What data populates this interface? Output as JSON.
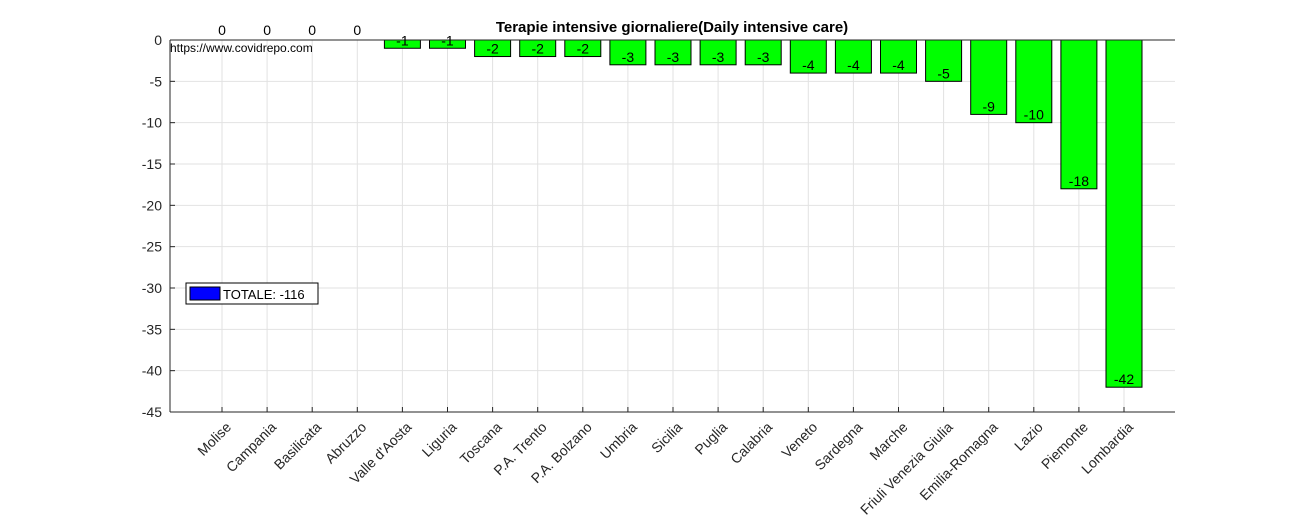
{
  "chart_data": {
    "type": "bar",
    "title": "Terapie intensive giornaliere(Daily intensive care)",
    "source": "https://www.covidrepo.com",
    "categories": [
      "Molise",
      "Campania",
      "Basilicata",
      "Abruzzo",
      "Valle d'Aosta",
      "Liguria",
      "Toscana",
      "P.A. Trento",
      "P.A. Bolzano",
      "Umbria",
      "Sicilia",
      "Puglia",
      "Calabria",
      "Veneto",
      "Sardegna",
      "Marche",
      "Friuli Venezia Giulia",
      "Emilia-Romagna",
      "Lazio",
      "Piemonte",
      "Lombardia"
    ],
    "values": [
      0,
      0,
      0,
      0,
      -1,
      -1,
      -2,
      -2,
      -2,
      -3,
      -3,
      -3,
      -3,
      -4,
      -4,
      -4,
      -5,
      -9,
      -10,
      -18,
      -42
    ],
    "ylim": [
      -45,
      0
    ],
    "yticks": [
      0,
      -5,
      -10,
      -15,
      -20,
      -25,
      -30,
      -35,
      -40,
      -45
    ],
    "xlabel": "",
    "ylabel": "",
    "grid": true,
    "bar_color": "#00ff00",
    "legend": {
      "label": "TOTALE: -116",
      "color": "#0000ff",
      "placement": "left"
    }
  }
}
